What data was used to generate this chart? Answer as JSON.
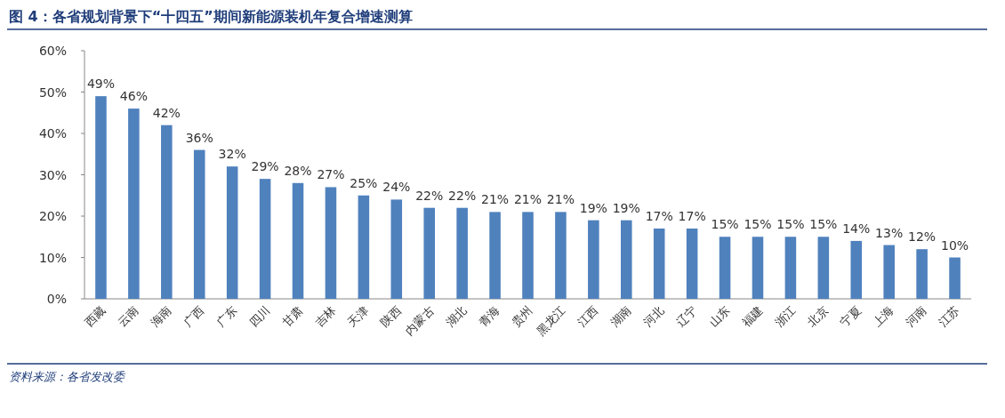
{
  "chart_data": {
    "type": "bar",
    "title": "图 4：各省规划背景下“十四五”期间新能源装机年复合增速测算",
    "categories": [
      "西藏",
      "云南",
      "海南",
      "广西",
      "广东",
      "四川",
      "甘肃",
      "吉林",
      "天津",
      "陕西",
      "内蒙古",
      "湖北",
      "青海",
      "贵州",
      "黑龙江",
      "江西",
      "湖南",
      "河北",
      "辽宁",
      "山东",
      "福建",
      "浙江",
      "北京",
      "宁夏",
      "上海",
      "河南",
      "江苏"
    ],
    "values": [
      49,
      46,
      42,
      36,
      32,
      29,
      28,
      27,
      25,
      24,
      22,
      22,
      21,
      21,
      21,
      19,
      19,
      17,
      17,
      15,
      15,
      15,
      15,
      14,
      13,
      12,
      10
    ],
    "value_labels": [
      "49%",
      "46%",
      "42%",
      "36%",
      "32%",
      "29%",
      "28%",
      "27%",
      "25%",
      "24%",
      "22%",
      "22%",
      "21%",
      "21%",
      "21%",
      "19%",
      "19%",
      "17%",
      "17%",
      "15%",
      "15%",
      "15%",
      "15%",
      "14%",
      "13%",
      "12%",
      "10%"
    ],
    "color": "#4f81bd",
    "ylim": [
      0,
      60
    ],
    "yticks": [
      {
        "value": 0,
        "label": "0%"
      },
      {
        "value": 10,
        "label": "10%"
      },
      {
        "value": 20,
        "label": "20%"
      },
      {
        "value": 30,
        "label": "30%"
      },
      {
        "value": 40,
        "label": "40%"
      },
      {
        "value": 50,
        "label": "50%"
      },
      {
        "value": 60,
        "label": "60%"
      }
    ],
    "grid": false,
    "annotations": [
      "资料来源：各省发改委"
    ]
  }
}
